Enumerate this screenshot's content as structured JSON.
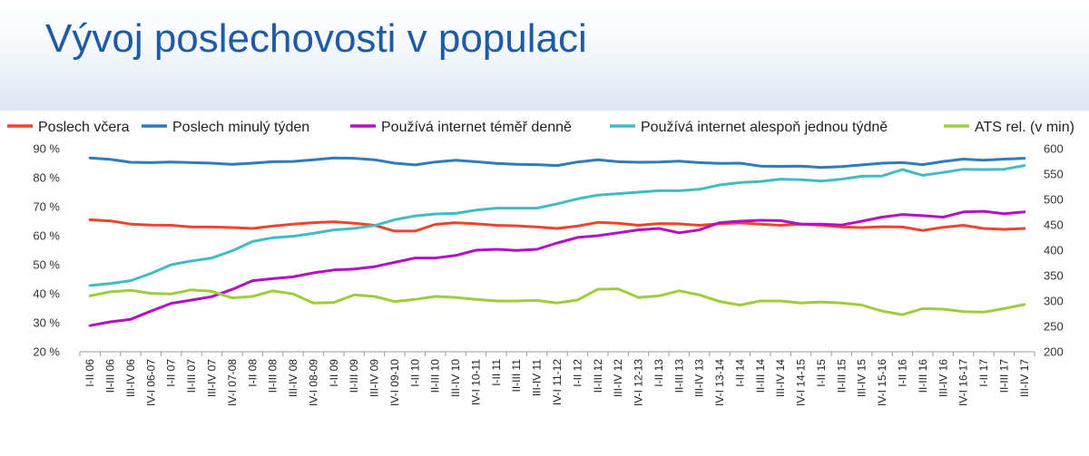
{
  "header": {
    "title": "Vývoj poslechovosti v populaci"
  },
  "chart_data": {
    "type": "line",
    "title": "",
    "xlabel": "",
    "ylabel_left": "",
    "ylabel_right": "",
    "grid": false,
    "legend_position": "top",
    "y_left": {
      "min": 20,
      "max": 90,
      "ticks": [
        20,
        30,
        40,
        50,
        60,
        70,
        80,
        90
      ],
      "tick_labels": [
        "20 %",
        "30 %",
        "40 %",
        "50 %",
        "60 %",
        "70 %",
        "80 %",
        "90 %"
      ]
    },
    "y_right": {
      "min": 200,
      "max": 600,
      "ticks": [
        200,
        250,
        300,
        350,
        400,
        450,
        500,
        550,
        600
      ],
      "tick_labels": [
        "200",
        "250",
        "300",
        "350",
        "400",
        "450",
        "500",
        "550",
        "600"
      ]
    },
    "categories": [
      "I-II 06",
      "II-III 06",
      "III-IV 06",
      "IV-I 06-07",
      "I-II 07",
      "II-III 07",
      "III-IV 07",
      "IV-I 07-08",
      "I-II 08",
      "II-III 08",
      "III-IV 08",
      "IV-I 08-09",
      "I-II 09",
      "II-III 09",
      "III-IV 09",
      "IV-I 09-10",
      "I-II 10",
      "II-III 10",
      "III-IV 10",
      "IV-I 10-11",
      "I-II 11",
      "II-III 11",
      "III-IV 11",
      "IV-I 11-12",
      "I-II 12",
      "II-III 12",
      "III-IV 12",
      "IV-I 12-13",
      "I-II 13",
      "II-III 13",
      "III-IV 13",
      "IV-I 13-14",
      "I-II 14",
      "II-III 14",
      "III-IV 14",
      "IV-I 14-15",
      "I-II 15",
      "II-III 15",
      "III-IV 15",
      "IV-I 15-16",
      "I-II 16",
      "II-III 16",
      "III-IV 16",
      "IV-I 16-17",
      "I-II 17",
      "II-III 17",
      "III-IV 17"
    ],
    "series": [
      {
        "name": "Poslech včera",
        "color": "#f0442a",
        "axis": "left",
        "values": [
          65.5,
          65.1,
          64.0,
          63.7,
          63.6,
          63.0,
          63.0,
          62.8,
          62.5,
          63.3,
          64.0,
          64.5,
          64.8,
          64.3,
          63.6,
          61.6,
          61.6,
          63.9,
          64.5,
          64.1,
          63.6,
          63.4,
          63.0,
          62.5,
          63.3,
          64.6,
          64.3,
          63.6,
          64.2,
          64.1,
          63.6,
          64.1,
          64.4,
          64.0,
          63.6,
          64.0,
          63.6,
          63.0,
          62.8,
          63.1,
          63.0,
          61.8,
          62.9,
          63.6,
          62.5,
          62.2,
          62.5
        ]
      },
      {
        "name": "Poslech minulý týden",
        "color": "#2f7bbd",
        "axis": "left",
        "values": [
          86.8,
          86.3,
          85.3,
          85.2,
          85.4,
          85.2,
          85.0,
          84.6,
          85.0,
          85.5,
          85.6,
          86.2,
          86.8,
          86.7,
          86.2,
          85.0,
          84.4,
          85.4,
          86.0,
          85.5,
          84.9,
          84.6,
          84.5,
          84.2,
          85.4,
          86.2,
          85.5,
          85.3,
          85.4,
          85.7,
          85.2,
          84.9,
          85.0,
          84.0,
          83.9,
          84.0,
          83.5,
          83.8,
          84.4,
          85.0,
          85.2,
          84.5,
          85.6,
          86.4,
          86.0,
          86.4,
          86.7
        ]
      },
      {
        "name": "Používá internet téměř denně",
        "color": "#b30fc7",
        "axis": "left",
        "values": [
          29.0,
          30.3,
          31.2,
          34.0,
          36.7,
          37.8,
          39.0,
          41.5,
          44.5,
          45.2,
          45.8,
          47.2,
          48.2,
          48.5,
          49.3,
          50.8,
          52.3,
          52.3,
          53.2,
          55.0,
          55.3,
          54.9,
          55.3,
          57.5,
          59.4,
          60.0,
          61.0,
          62.0,
          62.5,
          61.0,
          62.0,
          64.5,
          65.0,
          65.3,
          65.2,
          64.0,
          64.0,
          63.7,
          65.0,
          66.4,
          67.3,
          66.9,
          66.4,
          68.2,
          68.4,
          67.6,
          68.2
        ]
      },
      {
        "name": "Používá internet alespoň jednou týdně",
        "color": "#40bcc3",
        "axis": "left",
        "values": [
          42.8,
          43.5,
          44.5,
          47.0,
          50.0,
          51.3,
          52.3,
          54.8,
          58.0,
          59.3,
          59.8,
          60.8,
          62.0,
          62.5,
          63.5,
          65.5,
          66.8,
          67.5,
          67.7,
          68.8,
          69.5,
          69.5,
          69.5,
          71.0,
          72.7,
          74.0,
          74.5,
          75.0,
          75.5,
          75.5,
          76.0,
          77.5,
          78.3,
          78.7,
          79.5,
          79.3,
          78.8,
          79.5,
          80.5,
          80.6,
          82.8,
          80.8,
          81.8,
          82.9,
          82.8,
          82.9,
          84.2
        ]
      },
      {
        "name": "ATS rel. (v min)",
        "color": "#9dcd3a",
        "axis": "right",
        "values": [
          310,
          318,
          321,
          315,
          314,
          322,
          319,
          306,
          309,
          320,
          314,
          296,
          297,
          312,
          309,
          299,
          303,
          309,
          307,
          303,
          300,
          300,
          301,
          296,
          302,
          323,
          324,
          307,
          310,
          320,
          312,
          299,
          292,
          300,
          300,
          296,
          298,
          296,
          292,
          280,
          273,
          285,
          284,
          279,
          278,
          285,
          293
        ]
      }
    ]
  }
}
